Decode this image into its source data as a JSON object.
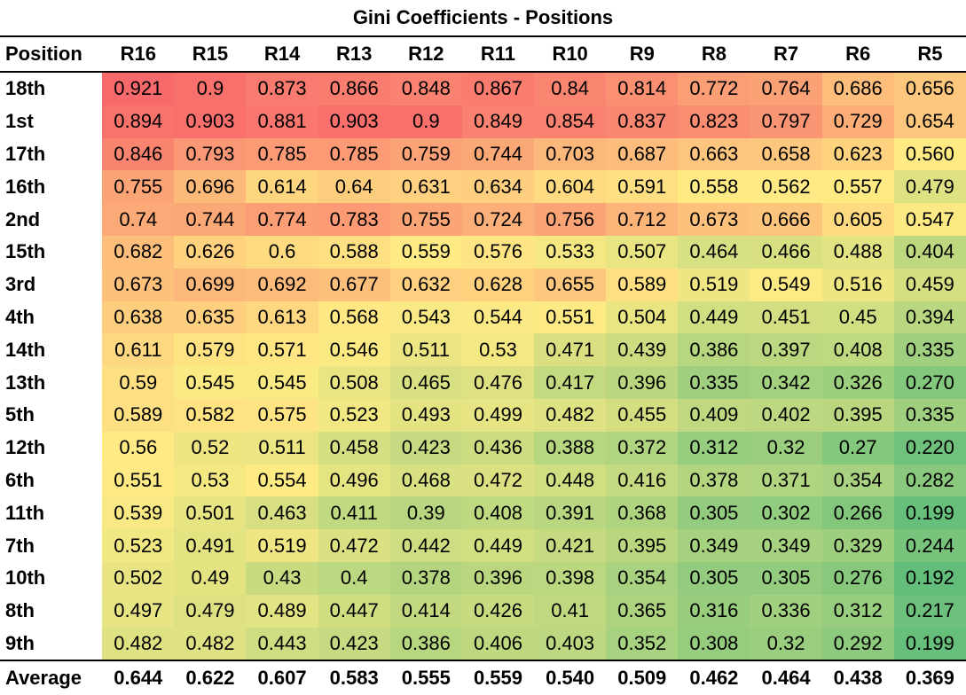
{
  "chart_data": {
    "type": "heatmap",
    "title": "Gini Coefficients - Positions",
    "row_header": "Position",
    "columns": [
      "R16",
      "R15",
      "R14",
      "R13",
      "R12",
      "R11",
      "R10",
      "R9",
      "R8",
      "R7",
      "R6",
      "R5"
    ],
    "rows": [
      {
        "label": "18th",
        "values": [
          "0.921",
          "0.9",
          "0.873",
          "0.866",
          "0.848",
          "0.867",
          "0.84",
          "0.814",
          "0.772",
          "0.764",
          "0.686",
          "0.656"
        ]
      },
      {
        "label": "1st",
        "values": [
          "0.894",
          "0.903",
          "0.881",
          "0.903",
          "0.9",
          "0.849",
          "0.854",
          "0.837",
          "0.823",
          "0.797",
          "0.729",
          "0.654"
        ]
      },
      {
        "label": "17th",
        "values": [
          "0.846",
          "0.793",
          "0.785",
          "0.785",
          "0.759",
          "0.744",
          "0.703",
          "0.687",
          "0.663",
          "0.658",
          "0.623",
          "0.560"
        ]
      },
      {
        "label": "16th",
        "values": [
          "0.755",
          "0.696",
          "0.614",
          "0.64",
          "0.631",
          "0.634",
          "0.604",
          "0.591",
          "0.558",
          "0.562",
          "0.557",
          "0.479"
        ]
      },
      {
        "label": "2nd",
        "values": [
          "0.74",
          "0.744",
          "0.774",
          "0.783",
          "0.755",
          "0.724",
          "0.756",
          "0.712",
          "0.673",
          "0.666",
          "0.605",
          "0.547"
        ]
      },
      {
        "label": "15th",
        "values": [
          "0.682",
          "0.626",
          "0.6",
          "0.588",
          "0.559",
          "0.576",
          "0.533",
          "0.507",
          "0.464",
          "0.466",
          "0.488",
          "0.404"
        ]
      },
      {
        "label": "3rd",
        "values": [
          "0.673",
          "0.699",
          "0.692",
          "0.677",
          "0.632",
          "0.628",
          "0.655",
          "0.589",
          "0.519",
          "0.549",
          "0.516",
          "0.459"
        ]
      },
      {
        "label": "4th",
        "values": [
          "0.638",
          "0.635",
          "0.613",
          "0.568",
          "0.543",
          "0.544",
          "0.551",
          "0.504",
          "0.449",
          "0.451",
          "0.45",
          "0.394"
        ]
      },
      {
        "label": "14th",
        "values": [
          "0.611",
          "0.579",
          "0.571",
          "0.546",
          "0.511",
          "0.53",
          "0.471",
          "0.439",
          "0.386",
          "0.397",
          "0.408",
          "0.335"
        ]
      },
      {
        "label": "13th",
        "values": [
          "0.59",
          "0.545",
          "0.545",
          "0.508",
          "0.465",
          "0.476",
          "0.417",
          "0.396",
          "0.335",
          "0.342",
          "0.326",
          "0.270"
        ]
      },
      {
        "label": "5th",
        "values": [
          "0.589",
          "0.582",
          "0.575",
          "0.523",
          "0.493",
          "0.499",
          "0.482",
          "0.455",
          "0.409",
          "0.402",
          "0.395",
          "0.335"
        ]
      },
      {
        "label": "12th",
        "values": [
          "0.56",
          "0.52",
          "0.511",
          "0.458",
          "0.423",
          "0.436",
          "0.388",
          "0.372",
          "0.312",
          "0.32",
          "0.27",
          "0.220"
        ]
      },
      {
        "label": "6th",
        "values": [
          "0.551",
          "0.53",
          "0.554",
          "0.496",
          "0.468",
          "0.472",
          "0.448",
          "0.416",
          "0.378",
          "0.371",
          "0.354",
          "0.282"
        ]
      },
      {
        "label": "11th",
        "values": [
          "0.539",
          "0.501",
          "0.463",
          "0.411",
          "0.39",
          "0.408",
          "0.391",
          "0.368",
          "0.305",
          "0.302",
          "0.266",
          "0.199"
        ]
      },
      {
        "label": "7th",
        "values": [
          "0.523",
          "0.491",
          "0.519",
          "0.472",
          "0.442",
          "0.449",
          "0.421",
          "0.395",
          "0.349",
          "0.349",
          "0.329",
          "0.244"
        ]
      },
      {
        "label": "10th",
        "values": [
          "0.502",
          "0.49",
          "0.43",
          "0.4",
          "0.378",
          "0.396",
          "0.398",
          "0.354",
          "0.305",
          "0.305",
          "0.276",
          "0.192"
        ]
      },
      {
        "label": "8th",
        "values": [
          "0.497",
          "0.479",
          "0.489",
          "0.447",
          "0.414",
          "0.426",
          "0.41",
          "0.365",
          "0.316",
          "0.336",
          "0.312",
          "0.217"
        ]
      },
      {
        "label": "9th",
        "values": [
          "0.482",
          "0.482",
          "0.443",
          "0.423",
          "0.386",
          "0.406",
          "0.403",
          "0.352",
          "0.308",
          "0.32",
          "0.292",
          "0.199"
        ]
      }
    ],
    "footer": {
      "label": "Average",
      "values": [
        "0.644",
        "0.622",
        "0.607",
        "0.583",
        "0.555",
        "0.559",
        "0.540",
        "0.509",
        "0.462",
        "0.464",
        "0.438",
        "0.369"
      ]
    },
    "color_scale": {
      "low": "#63be7b",
      "mid": "#ffeb84",
      "high": "#f8696b"
    }
  }
}
